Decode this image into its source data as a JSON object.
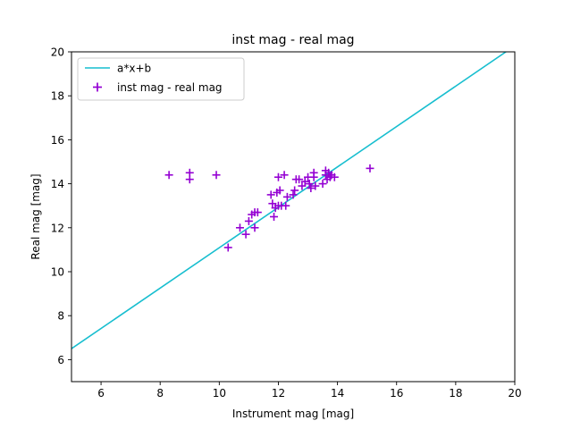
{
  "chart_data": {
    "type": "scatter",
    "title": "inst mag - real mag",
    "xlabel": "Instrument mag [mag]",
    "ylabel": "Real mag [mag]",
    "xlim": [
      5,
      20
    ],
    "ylim": [
      5,
      20
    ],
    "xticks": [
      6,
      8,
      10,
      12,
      14,
      16,
      18,
      20
    ],
    "yticks": [
      6,
      8,
      10,
      12,
      14,
      16,
      18,
      20
    ],
    "grid": false,
    "legend_position": "upper-left",
    "series": [
      {
        "name": "a*x+b",
        "kind": "line",
        "color": "#17becf",
        "x": [
          5,
          19.7
        ],
        "y": [
          6.5,
          20
        ]
      },
      {
        "name": "inst mag - real mag",
        "kind": "scatter",
        "marker": "+",
        "color": "#9400d3",
        "x": [
          8.3,
          9.0,
          9.0,
          9.9,
          10.3,
          10.7,
          10.9,
          11.0,
          11.1,
          11.2,
          11.2,
          11.3,
          11.75,
          11.8,
          11.85,
          11.9,
          11.95,
          12.0,
          12.0,
          12.05,
          12.1,
          12.2,
          12.25,
          12.3,
          12.5,
          12.55,
          12.6,
          12.7,
          12.8,
          12.9,
          13.0,
          13.05,
          13.1,
          13.2,
          13.2,
          13.25,
          13.5,
          13.6,
          13.6,
          13.65,
          13.7,
          13.75,
          13.8,
          13.9,
          15.1
        ],
        "y": [
          14.4,
          14.5,
          14.2,
          14.4,
          11.1,
          12.0,
          11.7,
          12.3,
          12.6,
          12.0,
          12.7,
          12.7,
          13.5,
          13.1,
          12.5,
          12.9,
          13.6,
          14.3,
          13.0,
          13.7,
          13.0,
          14.4,
          13.0,
          13.4,
          13.5,
          13.7,
          14.2,
          14.2,
          13.9,
          14.1,
          14.3,
          14.0,
          13.8,
          14.5,
          14.3,
          13.9,
          14.0,
          14.6,
          14.4,
          14.2,
          14.5,
          14.3,
          14.4,
          14.3,
          14.7
        ]
      }
    ]
  }
}
